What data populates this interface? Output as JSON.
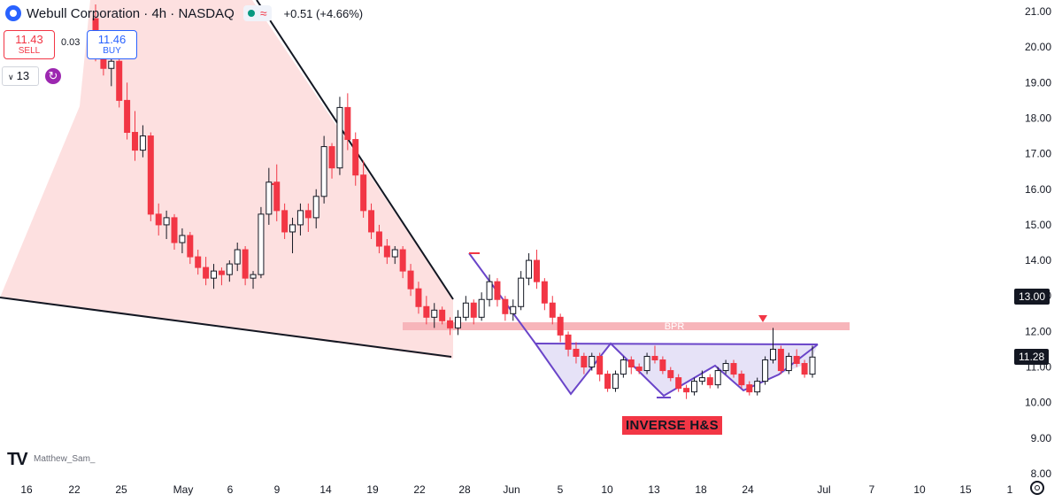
{
  "header": {
    "symbol_title": "Webull Corporation · 4h · NASDAQ",
    "status_symbol": "≈",
    "change": "+0.51 (+4.66%)"
  },
  "trade": {
    "sell_price": "11.43",
    "sell_label": "SELL",
    "spread": "0.03",
    "buy_price": "11.46",
    "buy_label": "BUY"
  },
  "interval_control": "13",
  "author": "Matthew_Sam_",
  "badges": {
    "level": "13.00",
    "last": "11.28"
  },
  "annotations": {
    "pattern_label": "INVERSE H&S",
    "zone_label": "BPR"
  },
  "colors": {
    "up": "#131722",
    "down": "#f23645",
    "pattern": "#6a45c9",
    "zone": "#f7b5ba",
    "wedge_fill": "#fde0e0",
    "badge": "#131722"
  },
  "chart_data": {
    "type": "candlestick",
    "title": "Webull Corporation · 4h · NASDAQ",
    "ylim": [
      8.0,
      21.0
    ],
    "y_ticks": [
      "21.00",
      "20.00",
      "19.00",
      "18.00",
      "17.00",
      "16.00",
      "15.00",
      "14.00",
      "13.00",
      "12.00",
      "11.00",
      "10.00",
      "9.00",
      "8.00"
    ],
    "x_ticks": [
      "16",
      "22",
      "25",
      "May",
      "6",
      "9",
      "14",
      "19",
      "22",
      "28",
      "Jun",
      "5",
      "10",
      "13",
      "18",
      "24",
      "Jul",
      "7",
      "10",
      "15",
      "1"
    ],
    "series": [
      {
        "values": [
          [
            20.8,
            21.2,
            19.6,
            19.9
          ],
          [
            19.9,
            20.3,
            19.2,
            19.4
          ],
          [
            19.4,
            19.9,
            18.9,
            19.6
          ],
          [
            19.6,
            19.7,
            18.3,
            18.5
          ],
          [
            18.5,
            19.0,
            17.4,
            17.6
          ],
          [
            17.6,
            18.2,
            16.8,
            17.1
          ],
          [
            17.1,
            17.8,
            16.9,
            17.5
          ],
          [
            17.5,
            17.6,
            15.1,
            15.3
          ],
          [
            15.3,
            15.6,
            14.7,
            15.0
          ],
          [
            15.0,
            15.4,
            14.6,
            15.2
          ],
          [
            15.2,
            15.3,
            14.3,
            14.5
          ],
          [
            14.5,
            14.9,
            14.2,
            14.7
          ],
          [
            14.7,
            14.8,
            13.9,
            14.1
          ],
          [
            14.1,
            14.3,
            13.6,
            13.8
          ],
          [
            13.8,
            14.1,
            13.3,
            13.5
          ],
          [
            13.5,
            13.9,
            13.2,
            13.7
          ],
          [
            13.7,
            13.8,
            13.3,
            13.6
          ],
          [
            13.6,
            14.0,
            13.4,
            13.9
          ],
          [
            13.9,
            14.5,
            13.7,
            14.3
          ],
          [
            14.3,
            14.4,
            13.3,
            13.5
          ],
          [
            13.5,
            13.7,
            13.2,
            13.6
          ],
          [
            13.6,
            15.5,
            13.5,
            15.3
          ],
          [
            15.3,
            16.6,
            15.0,
            16.2
          ],
          [
            16.2,
            16.7,
            15.1,
            15.4
          ],
          [
            15.4,
            15.6,
            14.6,
            14.8
          ],
          [
            14.8,
            15.2,
            14.2,
            15.0
          ],
          [
            15.0,
            15.6,
            14.7,
            15.4
          ],
          [
            15.4,
            15.6,
            14.8,
            15.2
          ],
          [
            15.2,
            16.0,
            14.9,
            15.8
          ],
          [
            15.8,
            17.5,
            15.6,
            17.2
          ],
          [
            17.2,
            17.3,
            16.3,
            16.6
          ],
          [
            16.6,
            18.6,
            16.4,
            18.3
          ],
          [
            18.3,
            18.7,
            17.1,
            17.4
          ],
          [
            17.4,
            17.6,
            16.1,
            16.4
          ],
          [
            16.4,
            16.8,
            15.2,
            15.4
          ],
          [
            15.4,
            15.6,
            14.6,
            14.8
          ],
          [
            14.8,
            15.0,
            14.2,
            14.4
          ],
          [
            14.4,
            14.6,
            13.9,
            14.1
          ],
          [
            14.1,
            14.4,
            13.9,
            14.3
          ],
          [
            14.3,
            14.4,
            13.5,
            13.7
          ],
          [
            13.7,
            13.9,
            13.0,
            13.2
          ],
          [
            13.2,
            13.4,
            12.5,
            12.7
          ],
          [
            12.7,
            13.0,
            12.2,
            12.4
          ],
          [
            12.4,
            12.8,
            12.1,
            12.6
          ],
          [
            12.6,
            12.7,
            12.2,
            12.3
          ],
          [
            12.3,
            12.4,
            11.9,
            12.1
          ],
          [
            12.1,
            12.6,
            11.9,
            12.4
          ],
          [
            12.4,
            13.0,
            12.3,
            12.8
          ],
          [
            12.8,
            12.9,
            12.2,
            12.4
          ],
          [
            12.4,
            13.1,
            12.3,
            12.9
          ],
          [
            12.9,
            13.6,
            12.7,
            13.4
          ],
          [
            13.4,
            13.5,
            12.7,
            12.9
          ],
          [
            12.9,
            13.0,
            12.3,
            12.5
          ],
          [
            12.5,
            12.9,
            12.3,
            12.7
          ],
          [
            12.7,
            13.7,
            12.6,
            13.5
          ],
          [
            13.5,
            14.2,
            13.3,
            14.0
          ],
          [
            14.0,
            14.3,
            13.2,
            13.4
          ],
          [
            13.4,
            13.5,
            12.6,
            12.8
          ],
          [
            12.8,
            13.0,
            12.2,
            12.4
          ],
          [
            12.4,
            12.5,
            11.7,
            11.9
          ],
          [
            11.9,
            12.0,
            11.3,
            11.5
          ],
          [
            11.5,
            11.7,
            11.1,
            11.3
          ],
          [
            11.3,
            11.4,
            10.8,
            11.0
          ],
          [
            11.0,
            11.4,
            10.9,
            11.3
          ],
          [
            11.3,
            11.4,
            10.6,
            10.8
          ],
          [
            10.8,
            10.9,
            10.3,
            10.4
          ],
          [
            10.4,
            10.9,
            10.3,
            10.8
          ],
          [
            10.8,
            11.3,
            10.7,
            11.2
          ],
          [
            11.2,
            11.3,
            10.8,
            11.0
          ],
          [
            11.0,
            11.1,
            10.8,
            10.9
          ],
          [
            10.9,
            11.4,
            10.8,
            11.3
          ],
          [
            11.3,
            11.6,
            11.1,
            11.2
          ],
          [
            11.2,
            11.3,
            10.8,
            10.9
          ],
          [
            10.9,
            11.0,
            10.6,
            10.7
          ],
          [
            10.7,
            10.8,
            10.3,
            10.4
          ],
          [
            10.4,
            10.5,
            10.1,
            10.3
          ],
          [
            10.3,
            10.7,
            10.2,
            10.6
          ],
          [
            10.6,
            10.9,
            10.5,
            10.7
          ],
          [
            10.7,
            10.8,
            10.4,
            10.5
          ],
          [
            10.5,
            11.0,
            10.4,
            10.9
          ],
          [
            10.9,
            11.2,
            10.8,
            11.1
          ],
          [
            11.1,
            11.2,
            10.7,
            10.8
          ],
          [
            10.8,
            10.9,
            10.4,
            10.5
          ],
          [
            10.5,
            10.6,
            10.2,
            10.3
          ],
          [
            10.3,
            10.7,
            10.2,
            10.6
          ],
          [
            10.6,
            11.3,
            10.5,
            11.2
          ],
          [
            11.2,
            12.1,
            11.1,
            11.5
          ],
          [
            11.5,
            11.6,
            10.8,
            10.9
          ],
          [
            10.9,
            11.4,
            10.8,
            11.3
          ],
          [
            11.3,
            11.5,
            11.0,
            11.1
          ],
          [
            11.1,
            11.2,
            10.7,
            10.8
          ],
          [
            10.8,
            11.6,
            10.7,
            11.28
          ]
        ]
      }
    ],
    "annotations": [
      {
        "label": "BPR",
        "from": 12.2,
        "to": 12.05
      },
      {
        "label": "INVERSE H&S"
      }
    ]
  }
}
